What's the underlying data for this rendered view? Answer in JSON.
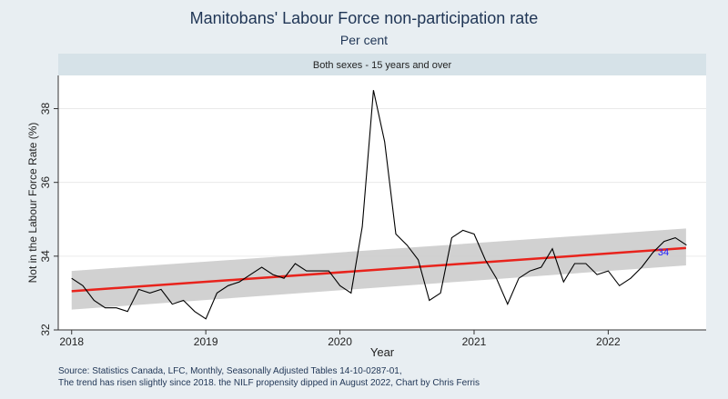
{
  "title": "Manitobans' Labour Force non-participation rate",
  "subtitle": "Per cent",
  "panel_label": "Both sexes - 15 years and over",
  "notes": [
    "Source: Statistics Canada, LFC, Monthly, Seasonally Adjusted Tables 14-10-0287-01,",
    "The trend has risen slightly since 2018. the NILF propensity dipped in August 2022, Chart by Chris Ferris"
  ],
  "colors": {
    "series": "#000000",
    "trend": "#e8231c",
    "ci_band": "#cccccc",
    "end_label": "#1a1aff",
    "background": "#e8eef2",
    "panel_header": "#d6e2e8"
  },
  "chart_data": {
    "type": "line",
    "xlabel": "Year",
    "ylabel": "Not in the Labour Force Rate (%)",
    "xlim": [
      2017.9,
      2022.73
    ],
    "ylim": [
      32,
      38.9
    ],
    "x_ticks": [
      2018,
      2019,
      2020,
      2021,
      2022
    ],
    "y_ticks": [
      32,
      34,
      36,
      38
    ],
    "grid": true,
    "end_label": "34",
    "series": [
      {
        "x_start": 2018.0,
        "x_step_months": 1,
        "values": [
          33.4,
          33.2,
          32.8,
          32.6,
          32.6,
          32.5,
          33.1,
          33.0,
          33.1,
          32.7,
          32.8,
          32.5,
          32.3,
          33.0,
          33.2,
          33.3,
          33.5,
          33.7,
          33.5,
          33.4,
          33.8,
          33.6,
          33.6,
          33.6,
          33.2,
          33.0,
          34.8,
          38.5,
          37.1,
          34.6,
          34.3,
          33.9,
          32.8,
          33.0,
          34.5,
          34.7,
          34.6,
          33.9,
          33.4,
          32.7,
          33.4,
          33.6,
          33.7,
          34.2,
          33.3,
          33.8,
          33.8,
          33.5,
          33.6,
          33.2,
          33.4,
          33.7,
          34.1,
          34.4,
          34.5,
          34.3
        ]
      }
    ],
    "trend": {
      "x": [
        2018.0,
        2022.58
      ],
      "fit": [
        33.05,
        34.22
      ],
      "ci_upper": [
        33.6,
        34.75
      ],
      "ci_lower": [
        32.55,
        33.75
      ]
    }
  }
}
